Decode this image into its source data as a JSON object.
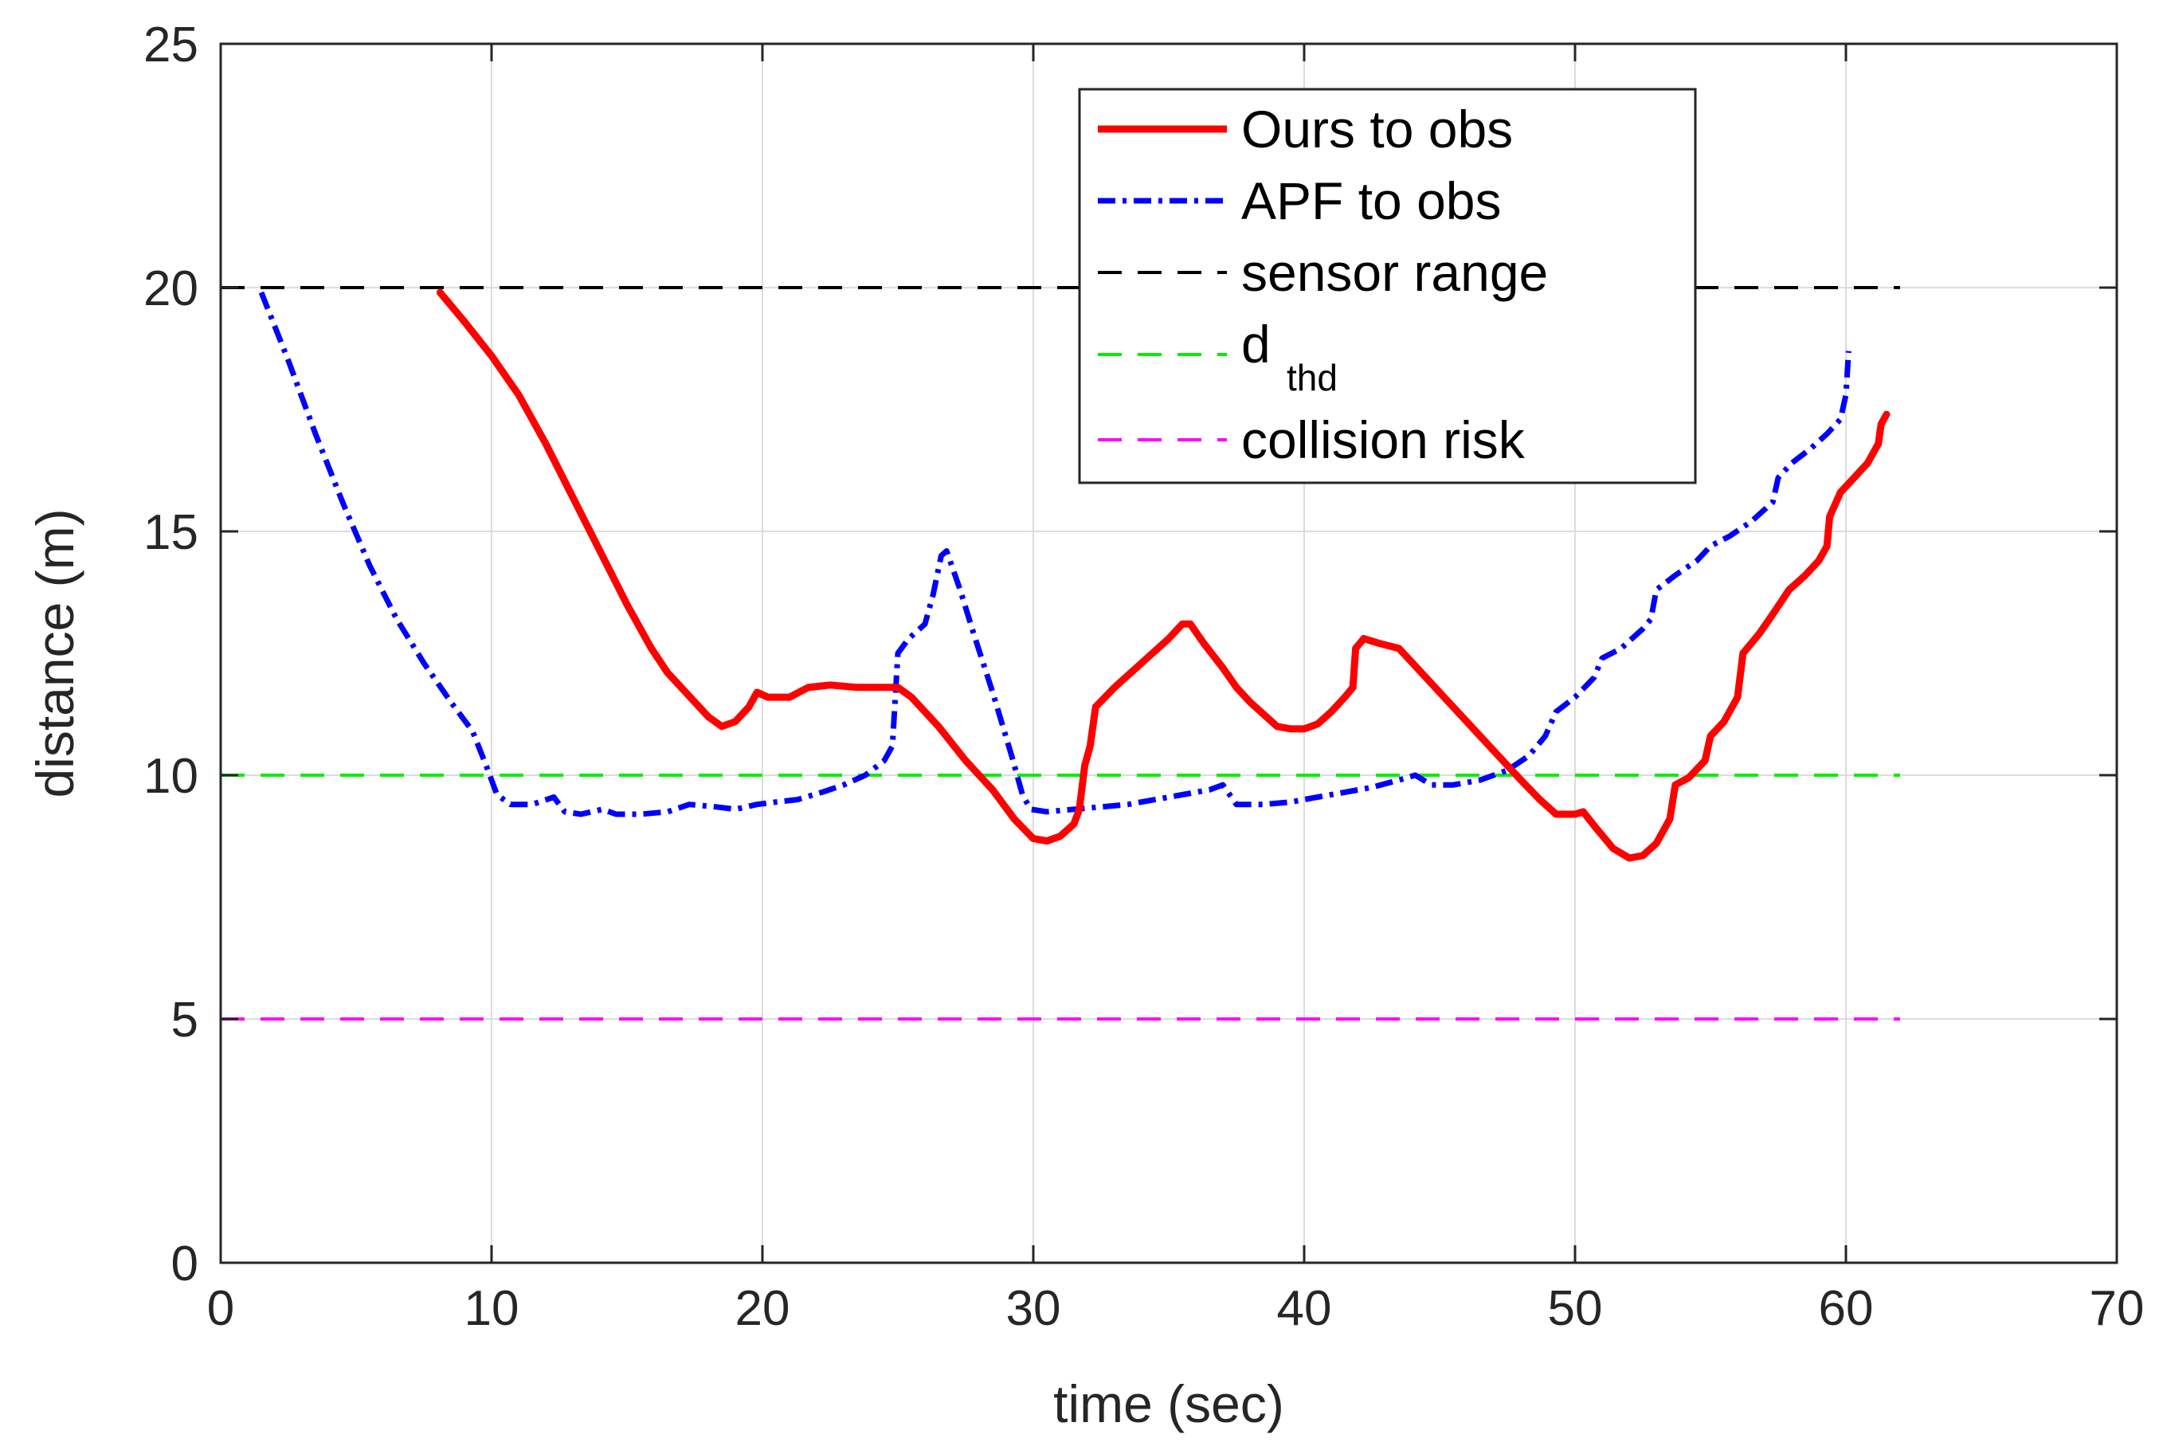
{
  "chart_data": {
    "type": "line",
    "title": "",
    "xlabel": "time (sec)",
    "ylabel": "distance (m)",
    "xlim": [
      0,
      70
    ],
    "ylim": [
      0,
      25
    ],
    "xticks": [
      0,
      10,
      20,
      30,
      40,
      50,
      60,
      70
    ],
    "yticks": [
      0,
      5,
      10,
      15,
      20,
      25
    ],
    "grid": true,
    "legend_position": "top-right (inside)",
    "series": [
      {
        "name": "Ours to obs",
        "color": "#ff0000",
        "style": "solid",
        "points": [
          [
            8.1,
            19.9
          ],
          [
            9,
            19.3
          ],
          [
            10,
            18.6
          ],
          [
            11,
            17.8
          ],
          [
            12,
            16.8
          ],
          [
            13,
            15.7
          ],
          [
            14,
            14.6
          ],
          [
            15,
            13.5
          ],
          [
            15.9,
            12.6
          ],
          [
            16.5,
            12.1
          ],
          [
            17,
            11.8
          ],
          [
            17.5,
            11.5
          ],
          [
            18,
            11.2
          ],
          [
            18.5,
            11.0
          ],
          [
            19,
            11.1
          ],
          [
            19.5,
            11.4
          ],
          [
            19.8,
            11.7
          ],
          [
            20.2,
            11.6
          ],
          [
            21,
            11.6
          ],
          [
            21.7,
            11.8
          ],
          [
            22.5,
            11.85
          ],
          [
            23.5,
            11.8
          ],
          [
            24.5,
            11.8
          ],
          [
            25,
            11.8
          ],
          [
            25.5,
            11.6
          ],
          [
            26.5,
            11.0
          ],
          [
            27.5,
            10.3
          ],
          [
            28.5,
            9.7
          ],
          [
            29.3,
            9.1
          ],
          [
            30,
            8.7
          ],
          [
            30.5,
            8.65
          ],
          [
            31,
            8.75
          ],
          [
            31.5,
            9.0
          ],
          [
            31.7,
            9.3
          ],
          [
            31.9,
            10.2
          ],
          [
            32.1,
            10.6
          ],
          [
            32.3,
            11.4
          ],
          [
            33,
            11.8
          ],
          [
            34,
            12.3
          ],
          [
            35,
            12.8
          ],
          [
            35.5,
            13.1
          ],
          [
            35.8,
            13.1
          ],
          [
            36.3,
            12.7
          ],
          [
            37,
            12.2
          ],
          [
            37.5,
            11.8
          ],
          [
            38,
            11.5
          ],
          [
            38.5,
            11.25
          ],
          [
            39,
            11.0
          ],
          [
            39.5,
            10.95
          ],
          [
            40,
            10.95
          ],
          [
            40.5,
            11.05
          ],
          [
            41,
            11.3
          ],
          [
            41.5,
            11.6
          ],
          [
            41.8,
            11.8
          ],
          [
            41.9,
            12.6
          ],
          [
            42.2,
            12.8
          ],
          [
            42.8,
            12.7
          ],
          [
            43.5,
            12.6
          ],
          [
            44,
            12.3
          ],
          [
            45,
            11.7
          ],
          [
            46,
            11.1
          ],
          [
            47,
            10.5
          ],
          [
            48,
            9.9
          ],
          [
            48.7,
            9.5
          ],
          [
            49.3,
            9.2
          ],
          [
            50,
            9.2
          ],
          [
            50.3,
            9.25
          ],
          [
            50.8,
            8.9
          ],
          [
            51.4,
            8.5
          ],
          [
            52,
            8.3
          ],
          [
            52.5,
            8.35
          ],
          [
            53,
            8.6
          ],
          [
            53.5,
            9.1
          ],
          [
            53.7,
            9.8
          ],
          [
            54.2,
            9.95
          ],
          [
            54.8,
            10.3
          ],
          [
            55,
            10.8
          ],
          [
            55.5,
            11.1
          ],
          [
            56,
            11.6
          ],
          [
            56.2,
            12.5
          ],
          [
            56.8,
            12.9
          ],
          [
            57.3,
            13.3
          ],
          [
            57.9,
            13.8
          ],
          [
            58.5,
            14.1
          ],
          [
            59,
            14.4
          ],
          [
            59.3,
            14.7
          ],
          [
            59.4,
            15.3
          ],
          [
            59.8,
            15.8
          ],
          [
            60.3,
            16.1
          ],
          [
            60.8,
            16.4
          ],
          [
            61.2,
            16.8
          ],
          [
            61.3,
            17.2
          ],
          [
            61.5,
            17.4
          ]
        ]
      },
      {
        "name": "APF to obs",
        "color": "#0000ff",
        "style": "dash-dot",
        "points": [
          [
            1.5,
            19.9
          ],
          [
            2.5,
            18.5
          ],
          [
            3.5,
            17.0
          ],
          [
            4.5,
            15.6
          ],
          [
            5.5,
            14.3
          ],
          [
            6.5,
            13.2
          ],
          [
            7.5,
            12.3
          ],
          [
            8.5,
            11.5
          ],
          [
            9.3,
            10.9
          ],
          [
            9.8,
            10.2
          ],
          [
            10.2,
            9.6
          ],
          [
            10.7,
            9.4
          ],
          [
            11.5,
            9.4
          ],
          [
            12.3,
            9.55
          ],
          [
            12.7,
            9.25
          ],
          [
            13.3,
            9.2
          ],
          [
            14.1,
            9.3
          ],
          [
            14.6,
            9.2
          ],
          [
            15.5,
            9.2
          ],
          [
            16.5,
            9.25
          ],
          [
            17.3,
            9.4
          ],
          [
            18.3,
            9.35
          ],
          [
            19,
            9.3
          ],
          [
            19.8,
            9.4
          ],
          [
            20.5,
            9.45
          ],
          [
            21.3,
            9.5
          ],
          [
            22.2,
            9.65
          ],
          [
            23,
            9.8
          ],
          [
            23.8,
            10.0
          ],
          [
            24.5,
            10.3
          ],
          [
            24.8,
            10.6
          ],
          [
            25.0,
            12.5
          ],
          [
            25.4,
            12.8
          ],
          [
            26,
            13.1
          ],
          [
            26.3,
            13.7
          ],
          [
            26.6,
            14.5
          ],
          [
            26.8,
            14.6
          ],
          [
            27.3,
            13.8
          ],
          [
            27.8,
            12.9
          ],
          [
            28.5,
            11.7
          ],
          [
            29.2,
            10.4
          ],
          [
            29.6,
            9.6
          ],
          [
            29.9,
            9.3
          ],
          [
            30.5,
            9.25
          ],
          [
            31.5,
            9.3
          ],
          [
            32.5,
            9.35
          ],
          [
            33.5,
            9.4
          ],
          [
            34.5,
            9.5
          ],
          [
            35.5,
            9.6
          ],
          [
            36.5,
            9.7
          ],
          [
            37,
            9.8
          ],
          [
            37.5,
            9.4
          ],
          [
            38.5,
            9.4
          ],
          [
            39.5,
            9.45
          ],
          [
            40.5,
            9.55
          ],
          [
            41.5,
            9.65
          ],
          [
            42.5,
            9.75
          ],
          [
            43.5,
            9.9
          ],
          [
            44.1,
            10.0
          ],
          [
            44.7,
            9.8
          ],
          [
            45.5,
            9.8
          ],
          [
            46.5,
            9.9
          ],
          [
            47.5,
            10.1
          ],
          [
            48.3,
            10.4
          ],
          [
            48.9,
            10.8
          ],
          [
            49.3,
            11.3
          ],
          [
            50,
            11.6
          ],
          [
            50.7,
            12.0
          ],
          [
            51,
            12.4
          ],
          [
            51.7,
            12.6
          ],
          [
            52.5,
            13.0
          ],
          [
            52.8,
            13.2
          ],
          [
            53,
            13.8
          ],
          [
            53.7,
            14.1
          ],
          [
            54.5,
            14.4
          ],
          [
            55,
            14.7
          ],
          [
            55.7,
            14.9
          ],
          [
            56.5,
            15.2
          ],
          [
            57.3,
            15.6
          ],
          [
            57.5,
            16.1
          ],
          [
            58,
            16.4
          ],
          [
            58.7,
            16.7
          ],
          [
            59.3,
            17.0
          ],
          [
            59.8,
            17.3
          ],
          [
            60.0,
            17.8
          ],
          [
            60.1,
            18.7
          ]
        ]
      },
      {
        "name": "sensor range",
        "color": "#000000",
        "style": "dashed",
        "points": [
          [
            0,
            20
          ],
          [
            62,
            20
          ]
        ]
      },
      {
        "name": "d",
        "name_subscript": "thd",
        "color": "#00ee00",
        "style": "dashed",
        "points": [
          [
            0,
            10
          ],
          [
            62,
            10
          ]
        ]
      },
      {
        "name": "collision risk",
        "color": "#ff00ff",
        "style": "dashed",
        "points": [
          [
            0,
            5
          ],
          [
            62,
            5
          ]
        ]
      }
    ]
  }
}
